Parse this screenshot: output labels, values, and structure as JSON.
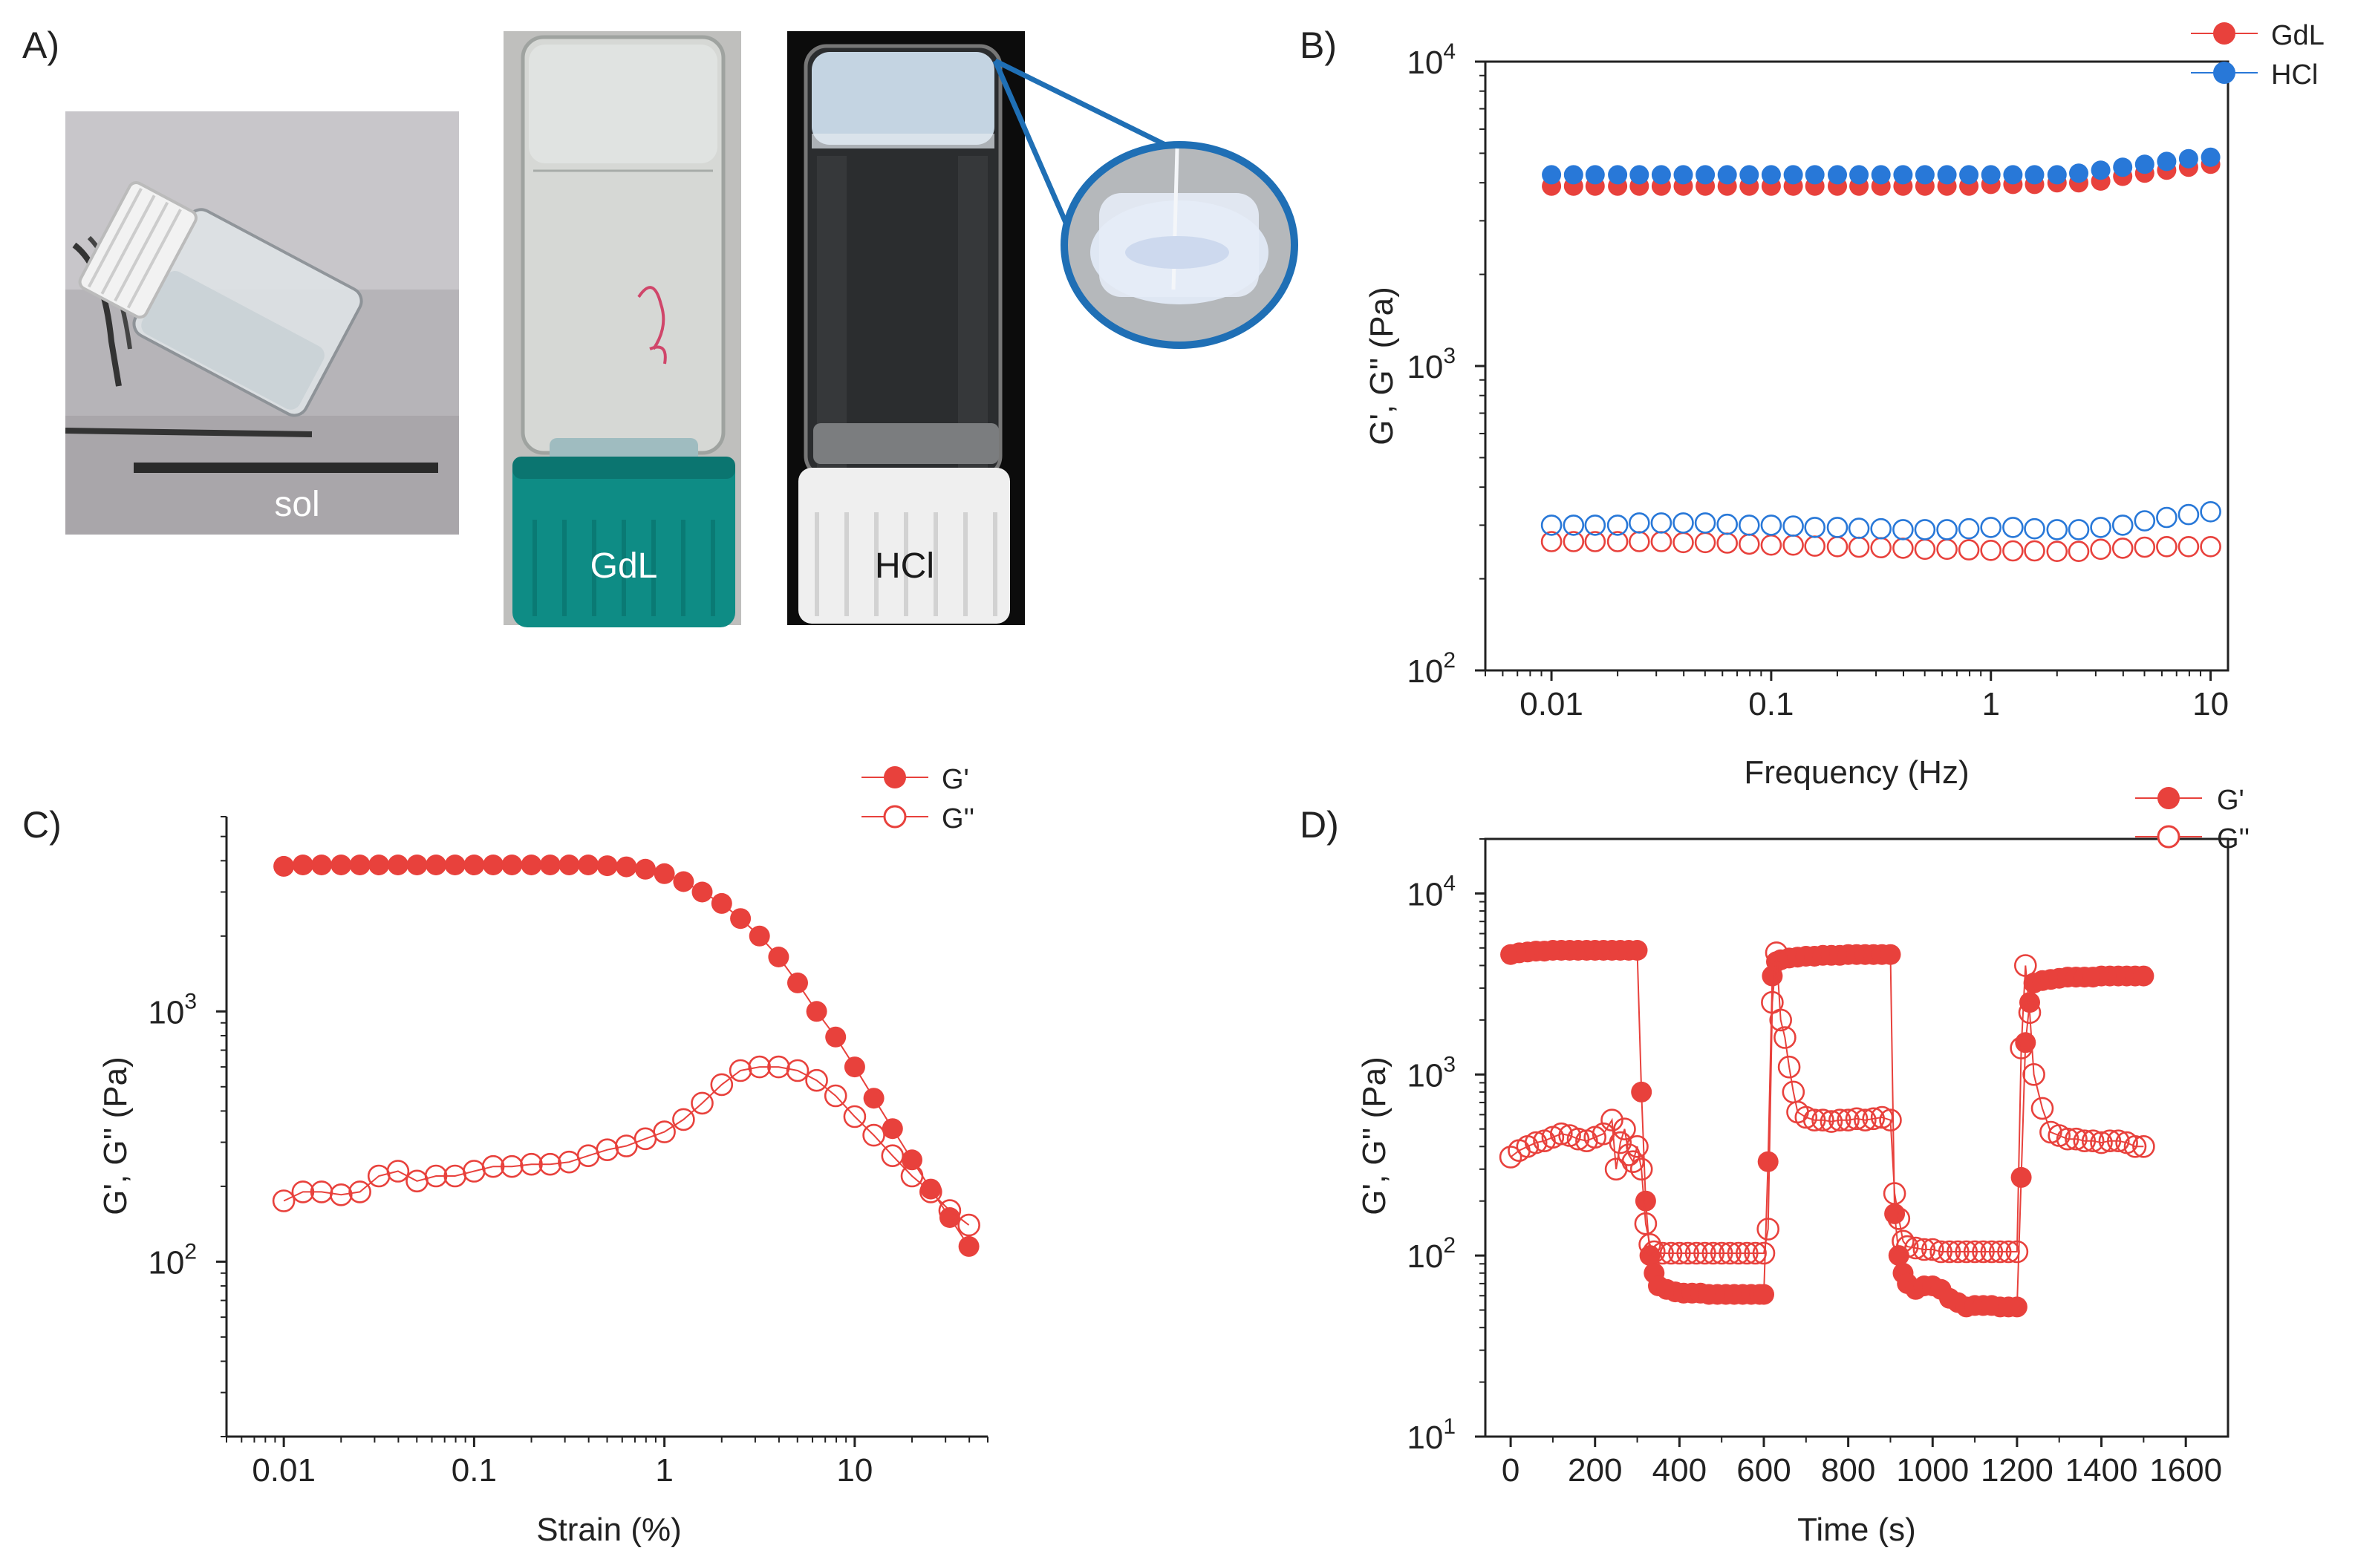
{
  "figure": {
    "panel_labels": {
      "a": "A)",
      "b": "B)",
      "c": "C)",
      "d": "D)"
    },
    "photos": [
      {
        "label": "sol",
        "cap_color": "#e8e8e8"
      },
      {
        "label": "GdL",
        "cap_color": "#0e8c85"
      },
      {
        "label": "HCl",
        "cap_color": "#f2f2f2"
      }
    ],
    "zoom_callout_color": "#1f6fb5"
  },
  "chart_data": [
    {
      "panel": "B",
      "type": "scatter",
      "xscale": "log",
      "yscale": "log",
      "xlabel": "Frequency (Hz)",
      "ylabel": "G', G'' (Pa)",
      "xlim": [
        0.005,
        12
      ],
      "ylim": [
        100,
        10000
      ],
      "xticks": [
        0.01,
        0.1,
        1,
        10
      ],
      "xtick_labels": [
        "0.01",
        "0.1",
        "1",
        "10"
      ],
      "yticks": [
        100,
        1000,
        10000
      ],
      "ytick_base": [
        "10",
        "10",
        "10"
      ],
      "ytick_exp": [
        "2",
        "3",
        "4"
      ],
      "legend": [
        "GdL",
        "HCl"
      ],
      "colors": {
        "GdL": "#e8413c",
        "HCl": "#2878d8"
      },
      "x": [
        0.01,
        0.0126,
        0.0158,
        0.02,
        0.0251,
        0.0316,
        0.0398,
        0.0501,
        0.0631,
        0.0794,
        0.1,
        0.126,
        0.158,
        0.2,
        0.251,
        0.316,
        0.398,
        0.501,
        0.631,
        0.794,
        1,
        1.26,
        1.58,
        2,
        2.51,
        3.16,
        3.98,
        5.01,
        6.31,
        7.94,
        10
      ],
      "series": [
        {
          "name": "GdL",
          "modulus": "G'",
          "filled": true,
          "values": [
            3900,
            3900,
            3900,
            3900,
            3900,
            3900,
            3900,
            3900,
            3900,
            3900,
            3900,
            3900,
            3900,
            3900,
            3900,
            3900,
            3900,
            3900,
            3900,
            3900,
            3950,
            3950,
            3950,
            4000,
            4000,
            4050,
            4200,
            4300,
            4400,
            4500,
            4600
          ]
        },
        {
          "name": "GdL",
          "modulus": "G''",
          "filled": false,
          "values": [
            265,
            265,
            265,
            265,
            265,
            265,
            263,
            263,
            262,
            260,
            258,
            258,
            256,
            255,
            254,
            253,
            252,
            250,
            250,
            249,
            248,
            247,
            247,
            246,
            246,
            250,
            252,
            254,
            255,
            255,
            255
          ]
        },
        {
          "name": "HCl",
          "modulus": "G'",
          "filled": true,
          "values": [
            4250,
            4250,
            4250,
            4250,
            4250,
            4250,
            4250,
            4250,
            4250,
            4250,
            4250,
            4250,
            4250,
            4250,
            4250,
            4250,
            4250,
            4250,
            4250,
            4250,
            4250,
            4250,
            4250,
            4250,
            4300,
            4400,
            4500,
            4600,
            4700,
            4800,
            4850
          ]
        },
        {
          "name": "HCl",
          "modulus": "G''",
          "filled": false,
          "values": [
            300,
            300,
            300,
            300,
            305,
            305,
            305,
            305,
            302,
            300,
            300,
            298,
            295,
            295,
            293,
            292,
            290,
            290,
            290,
            292,
            295,
            295,
            292,
            290,
            290,
            295,
            300,
            310,
            318,
            325,
            332
          ]
        }
      ]
    },
    {
      "panel": "C",
      "type": "scatter",
      "xscale": "log",
      "yscale": "log",
      "xlabel": "Strain (%)",
      "ylabel": "G', G'' (Pa)",
      "xlim": [
        0.005,
        50
      ],
      "ylim": [
        20,
        6000
      ],
      "xticks": [
        0.01,
        0.1,
        1,
        10
      ],
      "xtick_labels": [
        "0.01",
        "0.1",
        "1",
        "10"
      ],
      "yticks": [
        100,
        1000
      ],
      "ytick_base": [
        "10",
        "10"
      ],
      "ytick_exp": [
        "2",
        "3"
      ],
      "legend": [
        "G'",
        "G''"
      ],
      "color": "#e8413c",
      "x": [
        0.01,
        0.0126,
        0.0158,
        0.02,
        0.0251,
        0.0316,
        0.0398,
        0.0501,
        0.0631,
        0.0794,
        0.1,
        0.126,
        0.158,
        0.2,
        0.251,
        0.316,
        0.398,
        0.501,
        0.631,
        0.794,
        1,
        1.26,
        1.58,
        2,
        2.51,
        3.16,
        3.98,
        5.01,
        6.31,
        7.94,
        10,
        12.6,
        15.8,
        20,
        25.1,
        31.6,
        39.8
      ],
      "series": [
        {
          "name": "G'",
          "filled": true,
          "values": [
            3800,
            3850,
            3850,
            3850,
            3850,
            3850,
            3850,
            3850,
            3850,
            3850,
            3850,
            3850,
            3850,
            3850,
            3850,
            3850,
            3850,
            3820,
            3780,
            3700,
            3550,
            3300,
            3000,
            2700,
            2350,
            2000,
            1650,
            1300,
            1000,
            790,
            600,
            450,
            340,
            255,
            195,
            150,
            115
          ]
        },
        {
          "name": "G''",
          "filled": false,
          "values": [
            175,
            190,
            190,
            185,
            190,
            220,
            230,
            210,
            220,
            220,
            230,
            240,
            240,
            245,
            245,
            250,
            265,
            280,
            290,
            310,
            330,
            370,
            430,
            510,
            580,
            600,
            600,
            580,
            530,
            460,
            380,
            320,
            265,
            220,
            190,
            160,
            140
          ]
        }
      ]
    },
    {
      "panel": "D",
      "type": "line",
      "xscale": "linear",
      "yscale": "log",
      "xlabel": "Time (s)",
      "ylabel": "G', G'' (Pa)",
      "xlim": [
        -60,
        1700
      ],
      "ylim": [
        10,
        20000
      ],
      "xticks": [
        0,
        200,
        400,
        600,
        800,
        1000,
        1200,
        1400,
        1600
      ],
      "xtick_labels": [
        "0",
        "200",
        "400",
        "600",
        "800",
        "1000",
        "1200",
        "1400",
        "1600"
      ],
      "yticks": [
        10,
        100,
        1000,
        10000
      ],
      "ytick_base": [
        "10",
        "10",
        "10",
        "10"
      ],
      "ytick_exp": [
        "1",
        "2",
        "3",
        "4"
      ],
      "legend": [
        "G'",
        "G''"
      ],
      "color": "#e8413c",
      "series": [
        {
          "name": "G'",
          "filled": true,
          "points": [
            [
              0,
              4600
            ],
            [
              20,
              4700
            ],
            [
              40,
              4750
            ],
            [
              60,
              4800
            ],
            [
              80,
              4800
            ],
            [
              100,
              4850
            ],
            [
              120,
              4850
            ],
            [
              140,
              4850
            ],
            [
              160,
              4850
            ],
            [
              180,
              4850
            ],
            [
              200,
              4850
            ],
            [
              220,
              4850
            ],
            [
              240,
              4850
            ],
            [
              260,
              4850
            ],
            [
              280,
              4850
            ],
            [
              300,
              4850
            ],
            [
              310,
              800
            ],
            [
              320,
              200
            ],
            [
              330,
              100
            ],
            [
              340,
              80
            ],
            [
              350,
              68
            ],
            [
              370,
              65
            ],
            [
              390,
              63
            ],
            [
              410,
              62
            ],
            [
              430,
              62
            ],
            [
              450,
              62
            ],
            [
              470,
              61
            ],
            [
              490,
              61
            ],
            [
              510,
              61
            ],
            [
              530,
              61
            ],
            [
              550,
              61
            ],
            [
              570,
              61
            ],
            [
              590,
              61
            ],
            [
              600,
              61
            ],
            [
              610,
              330
            ],
            [
              620,
              3500
            ],
            [
              630,
              4200
            ],
            [
              640,
              4300
            ],
            [
              660,
              4400
            ],
            [
              680,
              4450
            ],
            [
              700,
              4500
            ],
            [
              720,
              4500
            ],
            [
              740,
              4550
            ],
            [
              760,
              4550
            ],
            [
              780,
              4550
            ],
            [
              800,
              4600
            ],
            [
              820,
              4600
            ],
            [
              840,
              4600
            ],
            [
              860,
              4600
            ],
            [
              880,
              4600
            ],
            [
              900,
              4600
            ],
            [
              910,
              170
            ],
            [
              920,
              100
            ],
            [
              930,
              80
            ],
            [
              940,
              70
            ],
            [
              960,
              65
            ],
            [
              980,
              68
            ],
            [
              1000,
              68
            ],
            [
              1020,
              65
            ],
            [
              1040,
              58
            ],
            [
              1060,
              55
            ],
            [
              1080,
              52
            ],
            [
              1100,
              53
            ],
            [
              1120,
              53
            ],
            [
              1140,
              53
            ],
            [
              1160,
              52
            ],
            [
              1180,
              52
            ],
            [
              1200,
              52
            ],
            [
              1210,
              270
            ],
            [
              1220,
              1500
            ],
            [
              1230,
              2500
            ],
            [
              1240,
              3200
            ],
            [
              1260,
              3300
            ],
            [
              1280,
              3350
            ],
            [
              1300,
              3400
            ],
            [
              1320,
              3450
            ],
            [
              1340,
              3450
            ],
            [
              1360,
              3450
            ],
            [
              1380,
              3450
            ],
            [
              1400,
              3500
            ],
            [
              1420,
              3500
            ],
            [
              1440,
              3500
            ],
            [
              1460,
              3500
            ],
            [
              1480,
              3500
            ],
            [
              1500,
              3500
            ]
          ]
        },
        {
          "name": "G''",
          "filled": false,
          "points": [
            [
              0,
              350
            ],
            [
              20,
              380
            ],
            [
              40,
              400
            ],
            [
              60,
              420
            ],
            [
              80,
              430
            ],
            [
              100,
              450
            ],
            [
              120,
              470
            ],
            [
              140,
              460
            ],
            [
              160,
              440
            ],
            [
              180,
              430
            ],
            [
              200,
              450
            ],
            [
              220,
              470
            ],
            [
              240,
              560
            ],
            [
              250,
              300
            ],
            [
              260,
              420
            ],
            [
              270,
              500
            ],
            [
              280,
              360
            ],
            [
              290,
              330
            ],
            [
              300,
              400
            ],
            [
              310,
              300
            ],
            [
              320,
              150
            ],
            [
              330,
              115
            ],
            [
              340,
              105
            ],
            [
              360,
              103
            ],
            [
              380,
              103
            ],
            [
              400,
              103
            ],
            [
              420,
              103
            ],
            [
              440,
              103
            ],
            [
              460,
              103
            ],
            [
              480,
              103
            ],
            [
              500,
              103
            ],
            [
              520,
              103
            ],
            [
              540,
              103
            ],
            [
              560,
              103
            ],
            [
              580,
              103
            ],
            [
              600,
              103
            ],
            [
              610,
              140
            ],
            [
              620,
              2500
            ],
            [
              630,
              4700
            ],
            [
              640,
              2000
            ],
            [
              650,
              1600
            ],
            [
              660,
              1100
            ],
            [
              670,
              800
            ],
            [
              680,
              620
            ],
            [
              700,
              580
            ],
            [
              720,
              560
            ],
            [
              740,
              560
            ],
            [
              760,
              550
            ],
            [
              780,
              560
            ],
            [
              800,
              560
            ],
            [
              820,
              570
            ],
            [
              840,
              560
            ],
            [
              860,
              570
            ],
            [
              880,
              580
            ],
            [
              900,
              560
            ],
            [
              910,
              220
            ],
            [
              920,
              160
            ],
            [
              930,
              120
            ],
            [
              940,
              112
            ],
            [
              960,
              110
            ],
            [
              980,
              108
            ],
            [
              1000,
              108
            ],
            [
              1020,
              105
            ],
            [
              1040,
              105
            ],
            [
              1060,
              105
            ],
            [
              1080,
              105
            ],
            [
              1100,
              105
            ],
            [
              1120,
              105
            ],
            [
              1140,
              105
            ],
            [
              1160,
              105
            ],
            [
              1180,
              105
            ],
            [
              1200,
              105
            ],
            [
              1210,
              1400
            ],
            [
              1220,
              4000
            ],
            [
              1230,
              2200
            ],
            [
              1240,
              1000
            ],
            [
              1260,
              650
            ],
            [
              1280,
              480
            ],
            [
              1300,
              460
            ],
            [
              1320,
              440
            ],
            [
              1340,
              440
            ],
            [
              1360,
              430
            ],
            [
              1380,
              430
            ],
            [
              1400,
              420
            ],
            [
              1420,
              430
            ],
            [
              1440,
              430
            ],
            [
              1460,
              420
            ],
            [
              1480,
              400
            ],
            [
              1500,
              400
            ]
          ]
        }
      ]
    }
  ]
}
